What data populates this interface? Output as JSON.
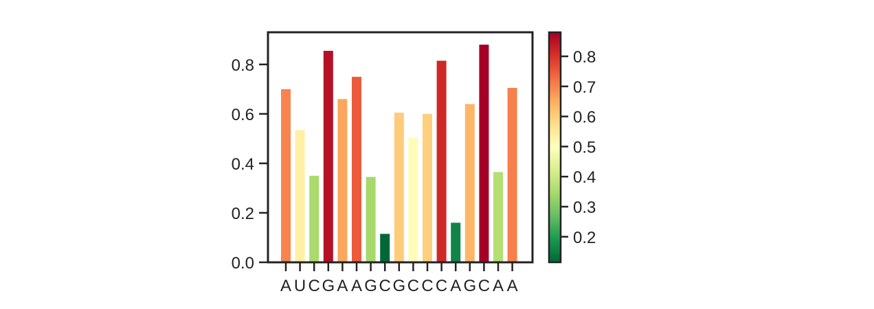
{
  "chart_data": {
    "type": "bar",
    "categories": [
      "A",
      "U",
      "C",
      "G",
      "A",
      "A",
      "G",
      "C",
      "G",
      "C",
      "C",
      "C",
      "A",
      "G",
      "C",
      "A",
      "A"
    ],
    "values": [
      0.7,
      0.535,
      0.35,
      0.855,
      0.66,
      0.75,
      0.345,
      0.115,
      0.605,
      0.505,
      0.6,
      0.815,
      0.16,
      0.64,
      0.88,
      0.365,
      0.705
    ],
    "ylim": [
      0,
      0.93
    ],
    "yticks": [
      "0.0",
      "0.2",
      "0.4",
      "0.6",
      "0.8"
    ],
    "colorbar": {
      "colormap": "RdYlGn_r",
      "range": [
        0.115,
        0.88
      ],
      "ticks": [
        "0.2",
        "0.3",
        "0.4",
        "0.5",
        "0.6",
        "0.7",
        "0.8"
      ]
    },
    "title": "",
    "xlabel": "",
    "ylabel": "",
    "grid": false,
    "legend": "none"
  }
}
